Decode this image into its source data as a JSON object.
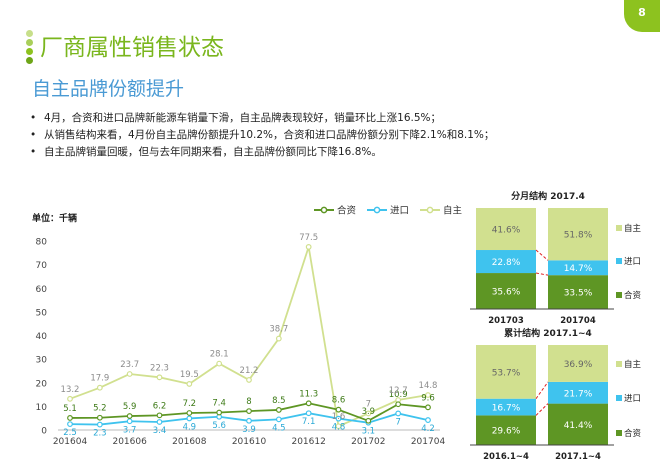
{
  "page_number": "8",
  "title": "厂商属性销售状态",
  "subtitle": "自主品牌份额提升",
  "bullets": [
    "4月，合资和进口品牌新能源车销量下滑，自主品牌表现较好，销量环比上涨16.5%；",
    "从销售结构来看，4月份自主品牌份额提升10.2%，合资和进口品牌份额分别下降2.1%和8.1%；",
    "自主品牌销量回暖，但与去年同期来看，自主品牌份额同比下降16.8%。"
  ],
  "colors": {
    "hezi": "#5e9624",
    "jinkou": "#3fc3ee",
    "zizhu": "#d1e08f",
    "title": "#7ab61d",
    "subtitle": "#4a9ad4"
  },
  "chart_data": [
    {
      "type": "line",
      "unit_label": "单位：千辆",
      "x": [
        "201604",
        "201605",
        "201606",
        "201607",
        "201608",
        "201609",
        "201610",
        "201611",
        "201612",
        "201701",
        "201702",
        "201703",
        "201704"
      ],
      "x_tick_labels": [
        "201604",
        "201606",
        "201608",
        "201610",
        "201612",
        "201702",
        "201704"
      ],
      "ylim": [
        0,
        80
      ],
      "yticks": [
        0,
        10,
        20,
        30,
        40,
        50,
        60,
        70,
        80
      ],
      "legend": [
        "合资",
        "进口",
        "自主"
      ],
      "series": [
        {
          "name": "合资",
          "values": [
            5.1,
            5.2,
            5.9,
            6.2,
            7.2,
            7.4,
            8.0,
            8.5,
            11.3,
            8.6,
            3.9,
            10.9,
            9.6
          ]
        },
        {
          "name": "进口",
          "values": [
            2.5,
            2.3,
            3.7,
            3.4,
            4.9,
            5.6,
            3.9,
            4.5,
            7.1,
            4.8,
            3.1,
            7.0,
            4.2
          ]
        },
        {
          "name": "自主",
          "values": [
            13.2,
            17.9,
            23.7,
            22.3,
            19.5,
            28.1,
            21.2,
            38.7,
            77.5,
            1.6,
            7.0,
            12.7,
            14.8
          ]
        }
      ]
    },
    {
      "type": "bar",
      "stacked": true,
      "title": "分月结构  2017.4",
      "categories": [
        "201703",
        "201704"
      ],
      "series": [
        {
          "name": "合资",
          "values": [
            35.6,
            33.5
          ]
        },
        {
          "name": "进口",
          "values": [
            22.8,
            14.7
          ]
        },
        {
          "name": "自主",
          "values": [
            41.6,
            51.8
          ]
        }
      ],
      "value_labels": {
        "合资": [
          "35.6%",
          "33.5%"
        ],
        "进口": [
          "22.8%",
          "14.7%"
        ],
        "自主": [
          "41.6%",
          "51.8%"
        ]
      }
    },
    {
      "type": "bar",
      "stacked": true,
      "title": "累计结构  2017.1~4",
      "categories": [
        "2016.1~4",
        "2017.1~4"
      ],
      "series": [
        {
          "name": "合资",
          "values": [
            29.6,
            41.4
          ]
        },
        {
          "name": "进口",
          "values": [
            16.7,
            21.7
          ]
        },
        {
          "name": "自主",
          "values": [
            53.7,
            36.9
          ]
        }
      ],
      "value_labels": {
        "合资": [
          "29.6%",
          "41.4%"
        ],
        "进口": [
          "16.7%",
          "21.7%"
        ],
        "自主": [
          "53.7%",
          "36.9%"
        ]
      }
    }
  ]
}
